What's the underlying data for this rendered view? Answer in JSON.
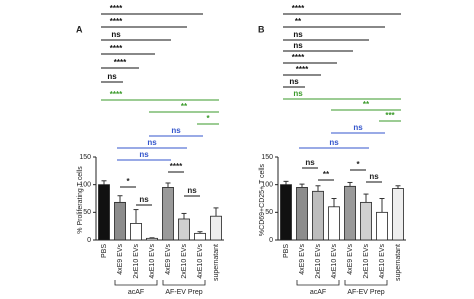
{
  "chart_data": [
    {
      "type": "bar",
      "panel": "A",
      "ylabel": "% Proliferating T cells",
      "categories": [
        "PBS",
        "4xE9 EVs",
        "2xE10 EVs",
        "4xE10 EVs",
        "4xE9 EVs",
        "2xE10 EVs",
        "4xE10 EVs",
        "supernatant"
      ],
      "values": [
        100,
        68,
        30,
        3,
        95,
        38,
        12,
        43
      ],
      "errors": [
        7,
        12,
        25,
        1,
        8,
        10,
        3,
        15
      ],
      "colors": [
        "#111111",
        "#8c8c8c",
        "#ffffff",
        "#ffffff",
        "#9a9a9a",
        "#d0d0d0",
        "#ffffff",
        "#eeeeee"
      ],
      "groups": [
        "acAF",
        "AF-EV Prep"
      ],
      "ylim": [
        0,
        150
      ],
      "yticks": [
        0,
        50,
        100,
        150
      ],
      "comparisons": [
        {
          "label": "****",
          "color": "#111111"
        },
        {
          "label": "****",
          "color": "#111111"
        },
        {
          "label": "ns",
          "color": "#111111"
        },
        {
          "label": "****",
          "color": "#111111"
        },
        {
          "label": "****",
          "color": "#111111"
        },
        {
          "label": "ns",
          "color": "#111111"
        },
        {
          "label": "****",
          "color": "#3a9a2a"
        },
        {
          "label": "**",
          "color": "#3a9a2a"
        },
        {
          "label": "*",
          "color": "#3a9a2a"
        },
        {
          "label": "ns",
          "color": "#3355cc"
        },
        {
          "label": "ns",
          "color": "#3355cc"
        },
        {
          "label": "ns",
          "color": "#3355cc"
        }
      ],
      "local_comparisons": [
        "*",
        "ns",
        "****",
        "ns"
      ]
    },
    {
      "type": "bar",
      "panel": "B",
      "ylabel": "%CD69+CD25+ T cells",
      "categories": [
        "PBS",
        "4xE9 EVs",
        "2xE10 EVs",
        "4xE10 EVs",
        "4xE9 EVs",
        "2xE10 EVs",
        "4xE10 EVs",
        "supernatant"
      ],
      "values": [
        100,
        95,
        88,
        60,
        97,
        68,
        50,
        93
      ],
      "errors": [
        6,
        6,
        10,
        15,
        7,
        15,
        25,
        5
      ],
      "colors": [
        "#111111",
        "#8c8c8c",
        "#bdbdbd",
        "#ffffff",
        "#9a9a9a",
        "#d0d0d0",
        "#ffffff",
        "#eeeeee"
      ],
      "groups": [
        "acAF",
        "AF-EV Prep"
      ],
      "ylim": [
        0,
        150
      ],
      "yticks": [
        0,
        50,
        100,
        150
      ],
      "comparisons": [
        {
          "label": "****",
          "color": "#111111"
        },
        {
          "label": "**",
          "color": "#111111"
        },
        {
          "label": "ns",
          "color": "#111111"
        },
        {
          "label": "ns",
          "color": "#111111"
        },
        {
          "label": "****",
          "color": "#111111"
        },
        {
          "label": "****",
          "color": "#111111"
        },
        {
          "label": "ns",
          "color": "#111111"
        },
        {
          "label": "ns",
          "color": "#3a9a2a"
        },
        {
          "label": "**",
          "color": "#3a9a2a"
        },
        {
          "label": "***",
          "color": "#3a9a2a"
        },
        {
          "label": "ns",
          "color": "#3355cc"
        },
        {
          "label": "ns",
          "color": "#3355cc"
        }
      ],
      "local_comparisons": [
        "ns",
        "**",
        "*",
        "ns"
      ]
    }
  ]
}
